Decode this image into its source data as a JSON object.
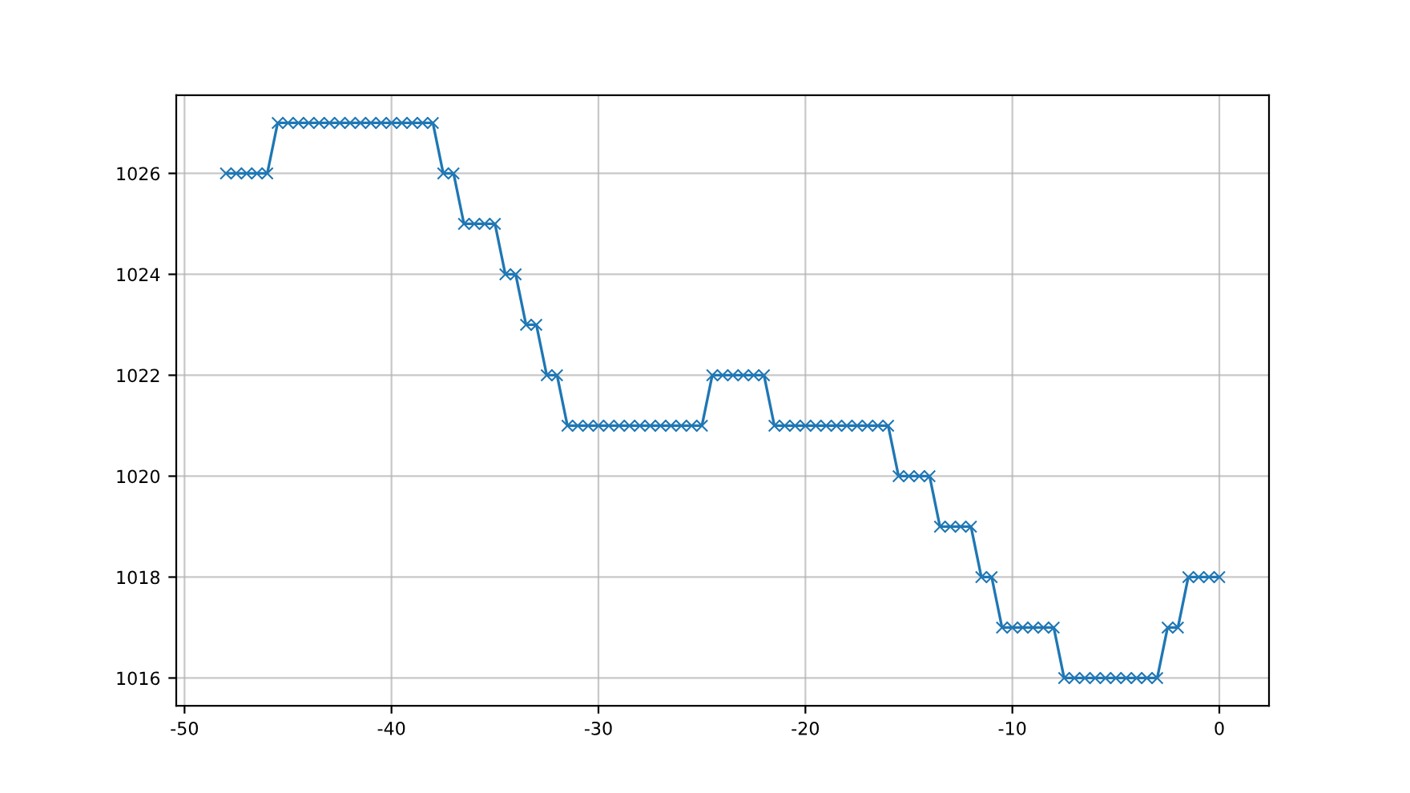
{
  "chart_data": {
    "type": "line",
    "x": [
      -48,
      -47.5,
      -47,
      -46.5,
      -46,
      -45.5,
      -45,
      -44.5,
      -44,
      -43.5,
      -43,
      -42.5,
      -42,
      -41.5,
      -41,
      -40.5,
      -40,
      -39.5,
      -39,
      -38.5,
      -38,
      -37.5,
      -37,
      -36.5,
      -36,
      -35.5,
      -35,
      -34.5,
      -34,
      -33.5,
      -33,
      -32.5,
      -32,
      -31.5,
      -31,
      -30.5,
      -30,
      -29.5,
      -29,
      -28.5,
      -28,
      -27.5,
      -27,
      -26.5,
      -26,
      -25.5,
      -25,
      -24.5,
      -24,
      -23.5,
      -23,
      -22.5,
      -22,
      -21.5,
      -21,
      -20.5,
      -20,
      -19.5,
      -19,
      -18.5,
      -18,
      -17.5,
      -17,
      -16.5,
      -16,
      -15.5,
      -15,
      -14.5,
      -14,
      -13.5,
      -13,
      -12.5,
      -12,
      -11.5,
      -11,
      -10.5,
      -10,
      -9.5,
      -9,
      -8.5,
      -8,
      -7.5,
      -7,
      -6.5,
      -6,
      -5.5,
      -5,
      -4.5,
      -4,
      -3.5,
      -3,
      -2.5,
      -2,
      -1.5,
      -1,
      -0.5,
      0
    ],
    "series": [
      {
        "color": "#1f77b4",
        "values": [
          1026,
          1026,
          1026,
          1026,
          1026,
          1027,
          1027,
          1027,
          1027,
          1027,
          1027,
          1027,
          1027,
          1027,
          1027,
          1027,
          1027,
          1027,
          1027,
          1027,
          1027,
          1026,
          1026,
          1025,
          1025,
          1025,
          1025,
          1024,
          1024,
          1023,
          1023,
          1022,
          1022,
          1021,
          1021,
          1021,
          1021,
          1021,
          1021,
          1021,
          1021,
          1021,
          1021,
          1021,
          1021,
          1021,
          1021,
          1022,
          1022,
          1022,
          1022,
          1022,
          1022,
          1021,
          1021,
          1021,
          1021,
          1021,
          1021,
          1021,
          1021,
          1021,
          1021,
          1021,
          1021,
          1020,
          1020,
          1020,
          1020,
          1019,
          1019,
          1019,
          1019,
          1018,
          1018,
          1017,
          1017,
          1017,
          1017,
          1017,
          1017,
          1016,
          1016,
          1016,
          1016,
          1016,
          1016,
          1016,
          1016,
          1016,
          1016,
          1017,
          1017,
          1018,
          1018,
          1018,
          1018
        ]
      }
    ],
    "xlim": [
      -50.4,
      2.4
    ],
    "ylim": [
      1015.45,
      1027.55
    ],
    "xticks": [
      -50,
      -40,
      -30,
      -20,
      -10,
      0
    ],
    "yticks": [
      1016,
      1018,
      1020,
      1022,
      1024,
      1026
    ],
    "grid": true,
    "marker": "cross",
    "line_style": "solid",
    "legend": false
  }
}
